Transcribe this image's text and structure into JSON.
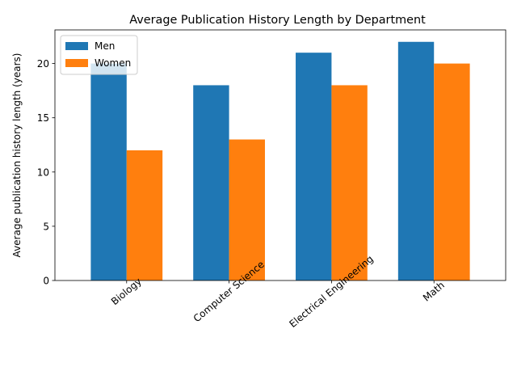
{
  "chart_data": {
    "type": "bar",
    "title": "Average Publication History Length by Department",
    "xlabel": "",
    "ylabel": "Average publication history length (years)",
    "categories": [
      "Biology",
      "Computer Science",
      "Electrical Engineering",
      "Math"
    ],
    "series": [
      {
        "name": "Men",
        "values": [
          20,
          18,
          21,
          22
        ],
        "color": "#1f77b4"
      },
      {
        "name": "Women",
        "values": [
          12,
          13,
          18,
          20
        ],
        "color": "#ff7f0e"
      }
    ],
    "ylim": [
      0,
      23.1
    ],
    "yticks": [
      0,
      5,
      10,
      15,
      20
    ],
    "grid": false,
    "legend_position": "top-left",
    "x_tick_rotation": 40
  }
}
